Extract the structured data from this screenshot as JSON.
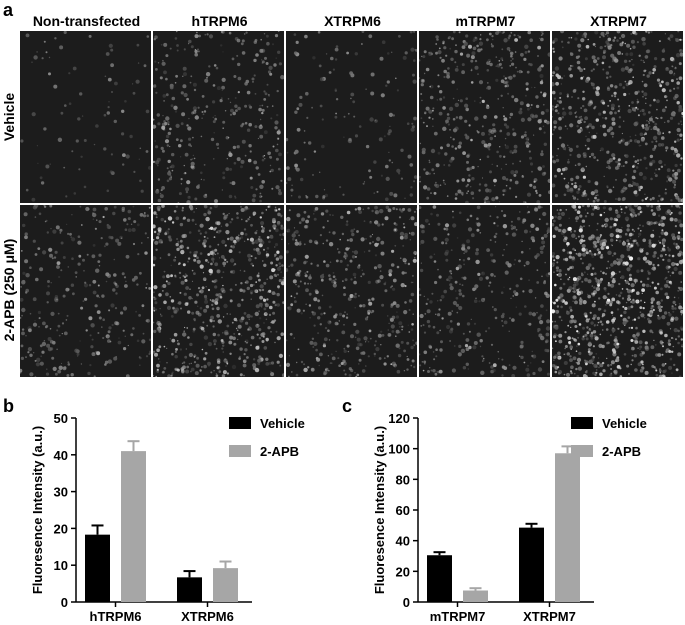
{
  "panel_a": {
    "letter": "a",
    "columns": [
      "Non-transfected",
      "hTRPM6",
      "XTRPM6",
      "mTRPM7",
      "XTRPM7"
    ],
    "rows": [
      "Vehicle",
      "2-APB (250 μM)"
    ],
    "brightness": [
      [
        0.05,
        0.35,
        0.12,
        0.45,
        0.65
      ],
      [
        0.3,
        0.7,
        0.45,
        0.35,
        0.95
      ]
    ]
  },
  "panel_b": {
    "letter": "b"
  },
  "panel_c": {
    "letter": "c"
  },
  "chart_data": [
    {
      "type": "bar",
      "ylabel": "Fluoresence Intensity (a.u.)",
      "xlabel": "",
      "categories": [
        "hTRPM6",
        "XTRPM6"
      ],
      "series": [
        {
          "name": "Vehicle",
          "values": [
            18.3,
            6.7
          ],
          "errors": [
            2.5,
            1.7
          ],
          "color": "#000000"
        },
        {
          "name": "2-APB",
          "values": [
            41.0,
            9.2
          ],
          "errors": [
            2.7,
            1.8
          ],
          "color": "#a6a6a6"
        }
      ],
      "ylim": [
        0,
        50
      ],
      "yticks": [
        "0",
        "10",
        "20",
        "30",
        "40",
        "50"
      ],
      "legend": "top-right"
    },
    {
      "type": "bar",
      "ylabel": "Fluoresence Intensity (a.u.)",
      "xlabel": "",
      "categories": [
        "mTRPM7",
        "XTRPM7"
      ],
      "series": [
        {
          "name": "Vehicle",
          "values": [
            30.5,
            48.5
          ],
          "errors": [
            2.0,
            2.5
          ],
          "color": "#000000"
        },
        {
          "name": "2-APB",
          "values": [
            7.5,
            97.0
          ],
          "errors": [
            1.5,
            4.5
          ],
          "color": "#a6a6a6"
        }
      ],
      "ylim": [
        0,
        120
      ],
      "yticks": [
        "0",
        "20",
        "40",
        "60",
        "80",
        "100",
        "120"
      ],
      "legend": "top-right"
    }
  ]
}
